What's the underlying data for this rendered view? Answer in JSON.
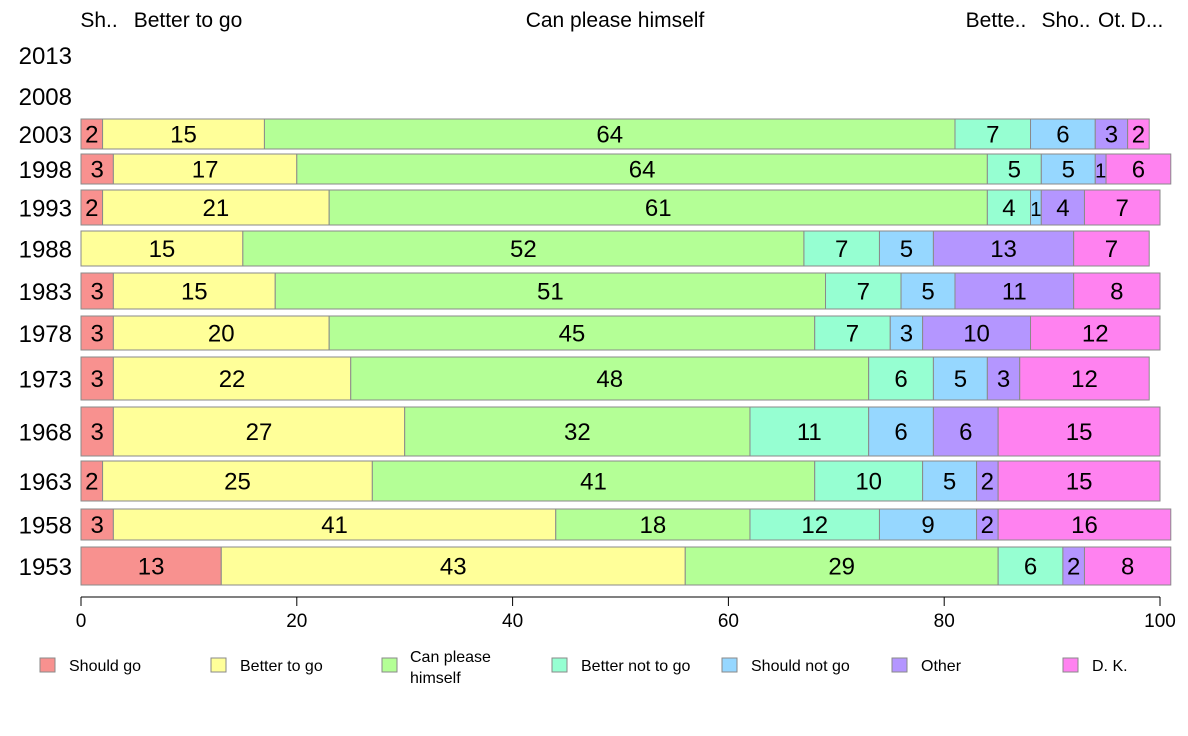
{
  "chart_data": {
    "type": "bar",
    "orientation": "horizontal",
    "stacked": true,
    "categories": [
      "2013",
      "2008",
      "2003",
      "1998",
      "1993",
      "1988",
      "1983",
      "1978",
      "1973",
      "1968",
      "1963",
      "1958",
      "1953"
    ],
    "series": [
      {
        "name": "Should go",
        "color": "#F8918F",
        "values": [
          null,
          null,
          2,
          3,
          2,
          0,
          3,
          3,
          3,
          3,
          2,
          3,
          13
        ]
      },
      {
        "name": "Better to go",
        "color": "#FFFF99",
        "values": [
          null,
          null,
          15,
          17,
          21,
          15,
          15,
          20,
          22,
          27,
          25,
          41,
          43
        ]
      },
      {
        "name": "Can please himself",
        "color": "#B4FF96",
        "values": [
          null,
          null,
          64,
          64,
          61,
          52,
          51,
          45,
          48,
          32,
          41,
          18,
          29
        ]
      },
      {
        "name": "Better not to go",
        "color": "#96FFD2",
        "values": [
          null,
          null,
          7,
          5,
          4,
          7,
          7,
          7,
          6,
          11,
          10,
          12,
          6
        ]
      },
      {
        "name": "Should not go",
        "color": "#96D7FF",
        "values": [
          null,
          null,
          6,
          5,
          1,
          5,
          5,
          3,
          5,
          6,
          5,
          9,
          0
        ]
      },
      {
        "name": "Other",
        "color": "#B496FF",
        "values": [
          null,
          null,
          3,
          1,
          4,
          13,
          11,
          10,
          3,
          6,
          2,
          2,
          2
        ]
      },
      {
        "name": "D. K.",
        "color": "#FF82F0",
        "values": [
          null,
          null,
          2,
          6,
          7,
          7,
          8,
          12,
          12,
          15,
          15,
          16,
          8
        ]
      }
    ],
    "top_labels": [
      "Sh..",
      "Better to go",
      "Can please himself",
      "Bette..",
      "Sho..",
      "Ot.",
      "D..."
    ],
    "x_ticks": [
      "0",
      "20",
      "40",
      "60",
      "80",
      "100"
    ],
    "xlim": [
      0,
      100
    ],
    "legend_position": "bottom",
    "grid": false
  }
}
